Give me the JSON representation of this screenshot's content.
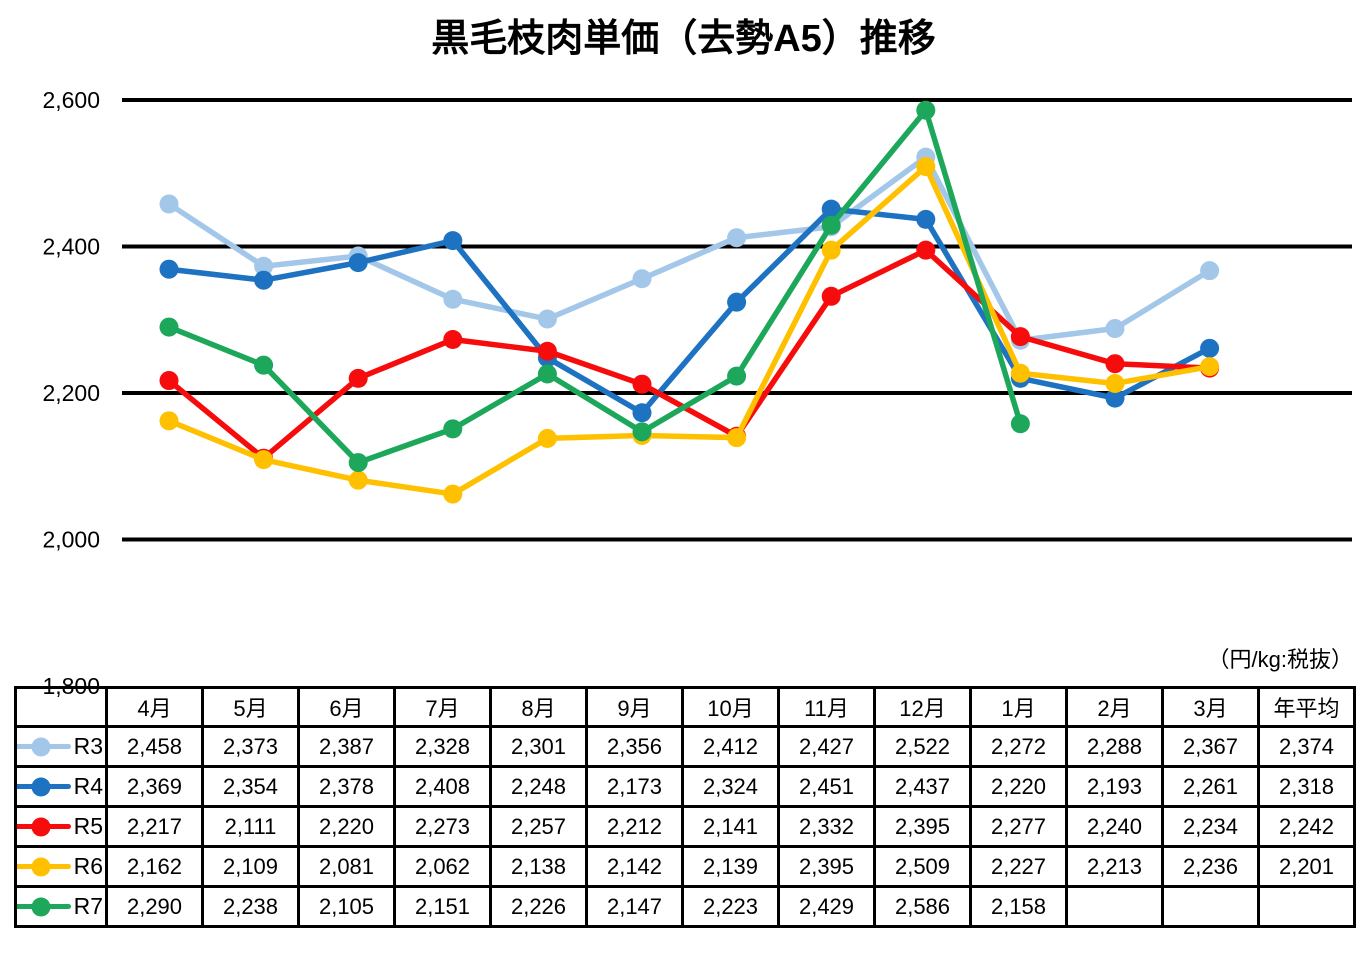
{
  "title": "黒毛枝肉単価（去勢A5）推移",
  "units_note": "（円/kg:税抜）",
  "chart_data": {
    "type": "line",
    "title": "黒毛枝肉単価（去勢A5）推移",
    "categories": [
      "4月",
      "5月",
      "6月",
      "7月",
      "8月",
      "9月",
      "10月",
      "11月",
      "12月",
      "1月",
      "2月",
      "3月"
    ],
    "avg_label": "年平均",
    "series": [
      {
        "name": "R3",
        "color": "#A3C7E9",
        "values": [
          2458,
          2373,
          2387,
          2328,
          2301,
          2356,
          2412,
          2427,
          2522,
          2272,
          2288,
          2367
        ],
        "avg": 2374
      },
      {
        "name": "R4",
        "color": "#1E72C2",
        "values": [
          2369,
          2354,
          2378,
          2408,
          2248,
          2173,
          2324,
          2451,
          2437,
          2220,
          2193,
          2261
        ],
        "avg": 2318
      },
      {
        "name": "R5",
        "color": "#F60C0C",
        "values": [
          2217,
          2111,
          2220,
          2273,
          2257,
          2212,
          2141,
          2332,
          2395,
          2277,
          2240,
          2234
        ],
        "avg": 2242
      },
      {
        "name": "R6",
        "color": "#FFC000",
        "values": [
          2162,
          2109,
          2081,
          2062,
          2138,
          2142,
          2139,
          2395,
          2509,
          2227,
          2213,
          2236
        ],
        "avg": 2201
      },
      {
        "name": "R7",
        "color": "#1CA75A",
        "values": [
          2290,
          2238,
          2105,
          2151,
          2226,
          2147,
          2223,
          2429,
          2586,
          2158,
          null,
          null
        ],
        "avg": null
      }
    ],
    "ylim": [
      1800,
      2600
    ],
    "yticks": [
      2600,
      2400,
      2200,
      2000,
      1800
    ],
    "grid": "horizontal-black",
    "legend_position": "table-left-column",
    "value_format": "thousands-comma"
  }
}
